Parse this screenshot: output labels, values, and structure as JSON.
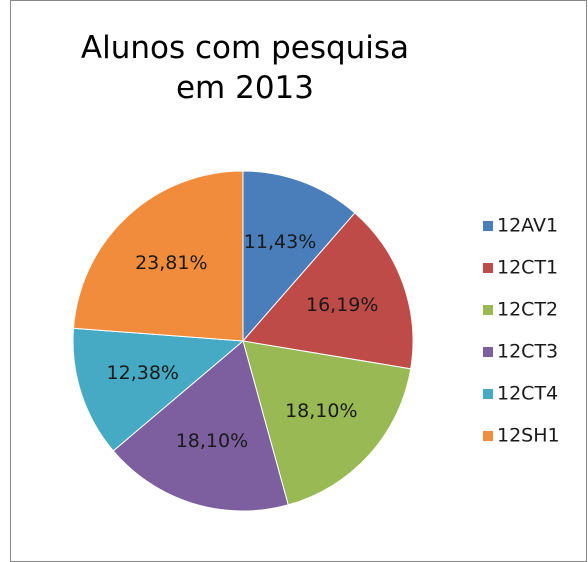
{
  "chart_data": {
    "type": "pie",
    "title": "Alunos com pesquisa em 2013",
    "categories": [
      "12AV1",
      "12CT1",
      "12CT2",
      "12CT3",
      "12CT4",
      "12SH1"
    ],
    "values": [
      11.43,
      16.19,
      18.1,
      18.1,
      12.38,
      23.81
    ],
    "value_labels": [
      "11,43%",
      "16,19%",
      "18,10%",
      "18,10%",
      "12,38%",
      "23,81%"
    ],
    "colors": [
      "#4a7ebb",
      "#be4b48",
      "#98b954",
      "#7d5fa0",
      "#46aac5",
      "#f08c3c"
    ],
    "legend": "right"
  }
}
